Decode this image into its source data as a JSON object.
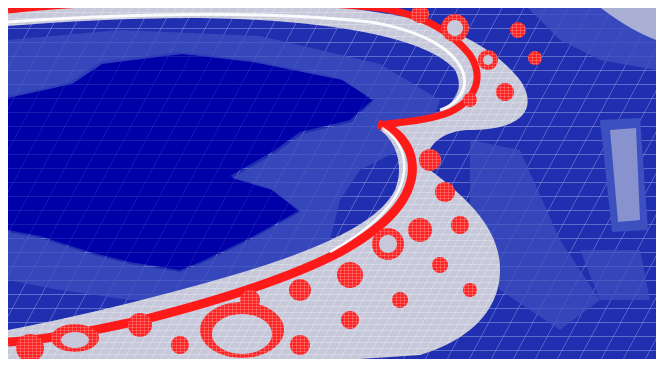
{
  "scene": {
    "subject": "mandelbrot-adaptive-mesh",
    "colors": {
      "frame": "#ffffff",
      "deep_blue": "#0000a8",
      "mid_blue": "#1f2fb0",
      "light_blue": "#3d50bf",
      "grey_band": "#c7c9da",
      "fractal_red": "#ff1a1a",
      "grid_line": "#e8ecff"
    }
  }
}
